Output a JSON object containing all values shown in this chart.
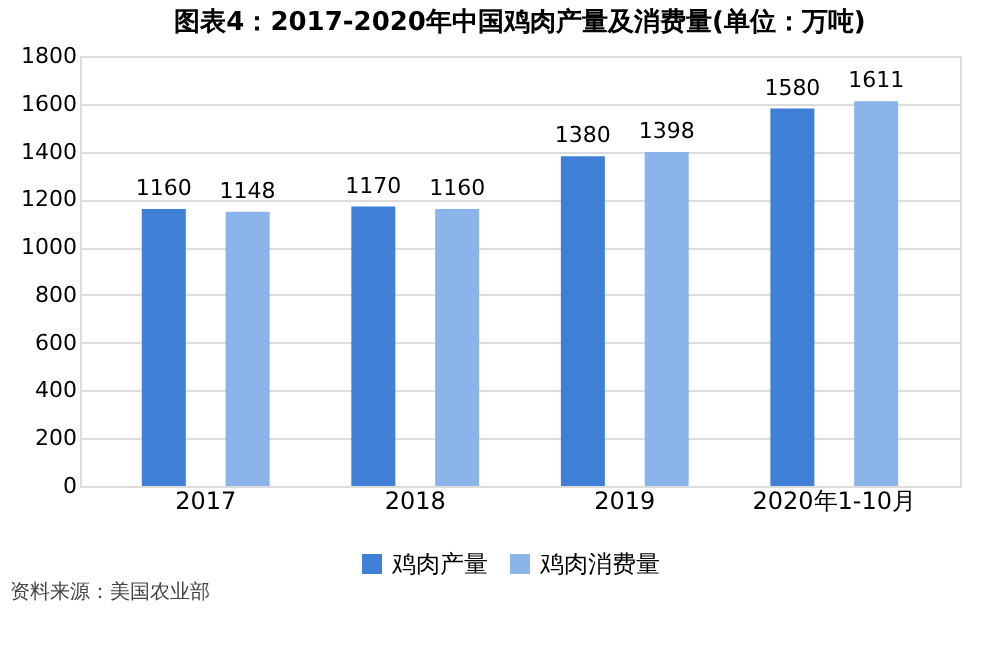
{
  "chart_data": {
    "type": "bar",
    "title": "图表4：2017-2020年中国鸡肉产量及消费量(单位：万吨)",
    "categories": [
      "2017",
      "2018",
      "2019",
      "2020年1-10月"
    ],
    "series": [
      {
        "name": "鸡肉产量",
        "color": "#3f7fd6",
        "values": [
          1160,
          1170,
          1380,
          1580
        ]
      },
      {
        "name": "鸡肉消费量",
        "color": "#8ab4ea",
        "values": [
          1148,
          1160,
          1398,
          1611
        ]
      }
    ],
    "ylim": [
      0,
      1800
    ],
    "yticks": [
      0,
      200,
      400,
      600,
      800,
      1000,
      1200,
      1400,
      1600,
      1800
    ],
    "grid": "y",
    "legend": "bottom",
    "data_labels": true,
    "annotations": [
      "资料来源：美国农业部"
    ]
  }
}
